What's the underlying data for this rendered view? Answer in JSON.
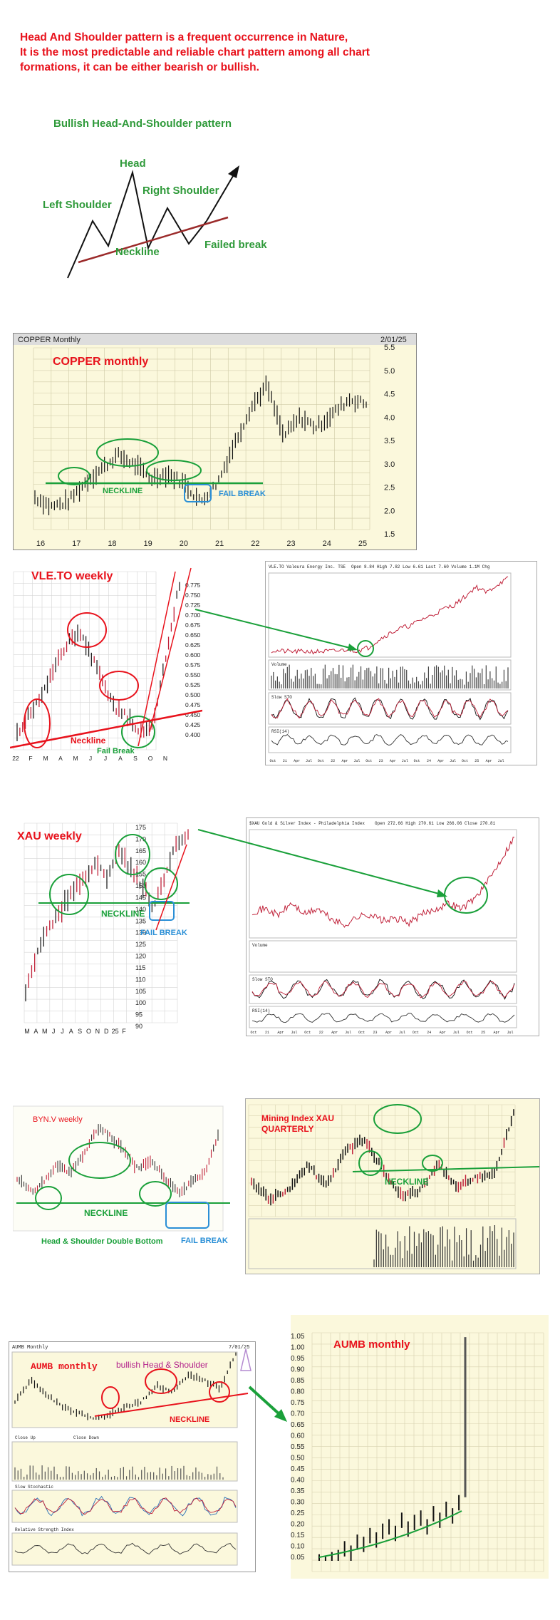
{
  "intro": {
    "line1": "Head And Shoulder pattern is a frequent occurrence in Nature,",
    "line2": "It is the most predictable and reliable chart pattern among all chart",
    "line3": "formations, it can be either bearish or bullish."
  },
  "diagram": {
    "title": "Bullish Head-And-Shoulder pattern",
    "head": "Head",
    "left_shoulder": "Left Shoulder",
    "right_shoulder": "Right Shoulder",
    "neckline": "Neckline",
    "failed_break": "Failed break"
  },
  "colors": {
    "annotation_red": "#e8121c",
    "annotation_green": "#1aa03a",
    "annotation_blue": "#2a8fd6",
    "chart_bg": "#fbf8dc"
  },
  "chart_data": [
    {
      "type": "line",
      "id": "copper",
      "header": "COPPER Monthly",
      "date": "2/01/25",
      "title": "COPPER  monthly",
      "x_ticks": [
        "16",
        "17",
        "18",
        "19",
        "20",
        "21",
        "22",
        "23",
        "24",
        "25"
      ],
      "y_ticks": [
        "5.5",
        "5.0",
        "4.5",
        "4.0",
        "3.5",
        "3.0",
        "2.5",
        "2.0",
        "1.5"
      ],
      "ylim": [
        1.5,
        5.5
      ],
      "x": [
        15.5,
        16,
        16.5,
        17,
        17.5,
        18,
        18.5,
        19,
        19.5,
        20,
        20.3,
        20.6,
        21,
        21.5,
        22,
        22.5,
        23,
        23.5,
        24,
        24.5,
        25
      ],
      "values": [
        2.3,
        2.1,
        2.2,
        2.6,
        2.9,
        3.2,
        3.0,
        2.7,
        2.8,
        2.6,
        2.2,
        2.6,
        3.4,
        4.2,
        4.7,
        3.6,
        4.0,
        3.8,
        4.1,
        4.4,
        4.3
      ],
      "neckline": "NECKLINE",
      "fail_break": "FAIL BREAK",
      "grid": true
    },
    {
      "type": "line",
      "id": "vle",
      "title": "VLE.TO  weekly",
      "x_ticks": [
        "22",
        "F",
        "M",
        "A",
        "M",
        "J",
        "J",
        "A",
        "S",
        "O",
        "N"
      ],
      "y_ticks": [
        "0.775",
        "0.750",
        "0.725",
        "0.700",
        "0.675",
        "0.650",
        "0.625",
        "0.600",
        "0.575",
        "0.550",
        "0.525",
        "0.500",
        "0.475",
        "0.450",
        "0.425",
        "0.400"
      ],
      "ylim": [
        0.4,
        0.78
      ],
      "values": [
        0.44,
        0.48,
        0.52,
        0.58,
        0.63,
        0.66,
        0.6,
        0.54,
        0.49,
        0.47,
        0.44,
        0.47,
        0.62,
        0.76
      ],
      "neckline": "Neckline",
      "fail_break": "Fail Break",
      "grid": true
    },
    {
      "type": "line",
      "id": "vle_long",
      "header": "VLE.TO Valeura Energy Inc.  TSE",
      "sub_header": "Open 8.84  High 7.82  Low 6.61  Last 7.60  Volume 1.1M  Chg",
      "x_ticks": [
        "Oct",
        "21",
        "Apr",
        "Jul",
        "Oct",
        "22",
        "Apr",
        "Jul",
        "Oct",
        "23",
        "Apr",
        "Jul",
        "Oct",
        "24",
        "Apr",
        "Jul",
        "Oct",
        "25",
        "Apr",
        "Jul"
      ],
      "values": [
        0.5,
        0.45,
        0.4,
        0.42,
        0.4,
        0.42,
        0.45,
        0.6,
        0.5,
        0.8,
        1.6,
        2.2,
        2.7,
        3.0,
        3.6,
        4.0,
        4.6,
        5.0,
        5.8,
        6.8,
        6.2,
        7.0,
        7.6
      ],
      "panels": [
        "Volume",
        "Slow STO",
        "RSI(14)"
      ]
    },
    {
      "type": "line",
      "id": "xau",
      "title": "XAU  weekly",
      "x_ticks": [
        "M",
        "A",
        "M",
        "J",
        "J",
        "A",
        "S",
        "O",
        "N",
        "D",
        "25",
        "F"
      ],
      "y_ticks": [
        "175",
        "170",
        "165",
        "160",
        "155",
        "150",
        "145",
        "140",
        "135",
        "130",
        "125",
        "120",
        "115",
        "110",
        "105",
        "100",
        "95",
        "90"
      ],
      "ylim": [
        90,
        177
      ],
      "values": [
        102,
        120,
        130,
        138,
        148,
        152,
        160,
        154,
        166,
        157,
        150,
        140,
        152,
        168,
        172
      ],
      "neckline": "NECKLINE",
      "fail_break": "FAIL BREAK",
      "grid": true
    },
    {
      "type": "line",
      "id": "xau_long",
      "header": "$XAU Gold & Silver Index - Philadelphia Index",
      "sub_header": "Open 272.66  High 270.61  Low 266.06  Close 270.81",
      "x_ticks": [
        "Oct",
        "21",
        "Apr",
        "Jul",
        "Oct",
        "22",
        "Apr",
        "Jul",
        "Oct",
        "23",
        "Apr",
        "Jul",
        "Oct",
        "24",
        "Apr",
        "Jul",
        "Oct",
        "25",
        "Apr",
        "Jul"
      ],
      "values": [
        145,
        150,
        138,
        160,
        140,
        150,
        132,
        120,
        135,
        140,
        128,
        132,
        125,
        140,
        150,
        160,
        150,
        170,
        200,
        240,
        280
      ],
      "panels": [
        "Volume",
        "Slow STO",
        "RSI(14)"
      ]
    },
    {
      "type": "line",
      "id": "byn",
      "title": "BYN.V  weekly",
      "values": [
        0.21,
        0.18,
        0.2,
        0.24,
        0.22,
        0.26,
        0.32,
        0.3,
        0.27,
        0.23,
        0.25,
        0.21,
        0.18,
        0.2,
        0.22,
        0.3
      ],
      "neckline": "NECKLINE",
      "caption": "Head & Shoulder Double Bottom",
      "fail_break": "FAIL BREAK"
    },
    {
      "type": "line",
      "id": "mining",
      "title": "Mining Index XAU QUARTERLY",
      "values": [
        100,
        60,
        80,
        140,
        90,
        170,
        200,
        130,
        70,
        80,
        140,
        90,
        110,
        120,
        260
      ],
      "neckline": "NECKLINE"
    },
    {
      "type": "line",
      "id": "aumb",
      "header": "AUMB Monthly",
      "date": "7/01/25",
      "title": "AUMB  monthly",
      "pattern": "bullish Head & Shoulder",
      "values": [
        0.12,
        0.2,
        0.15,
        0.1,
        0.08,
        0.06,
        0.07,
        0.1,
        0.12,
        0.18,
        0.16,
        0.22,
        0.2,
        0.17,
        0.3
      ],
      "neckline": "NECKLINE",
      "panels": [
        "Close Up",
        "Close Down",
        "Slow Stochastic",
        "Relative Strength Index"
      ]
    },
    {
      "type": "bar",
      "id": "aumb_long",
      "title": "AUMB  monthly",
      "y_ticks": [
        "1.05",
        "1.00",
        "0.95",
        "0.90",
        "0.85",
        "0.80",
        "0.75",
        "0.70",
        "0.65",
        "0.60",
        "0.55",
        "0.50",
        "0.45",
        "0.40",
        "0.35",
        "0.30",
        "0.25",
        "0.20",
        "0.15",
        "0.10",
        "0.05"
      ],
      "ylim": [
        0.03,
        1.07
      ],
      "values": [
        0.06,
        0.05,
        0.07,
        0.08,
        0.12,
        0.1,
        0.15,
        0.14,
        0.18,
        0.16,
        0.2,
        0.22,
        0.19,
        0.25,
        0.21,
        0.24,
        0.26,
        0.22,
        0.28,
        0.25,
        0.3,
        0.27,
        0.33,
        1.05
      ],
      "grid": true
    }
  ]
}
